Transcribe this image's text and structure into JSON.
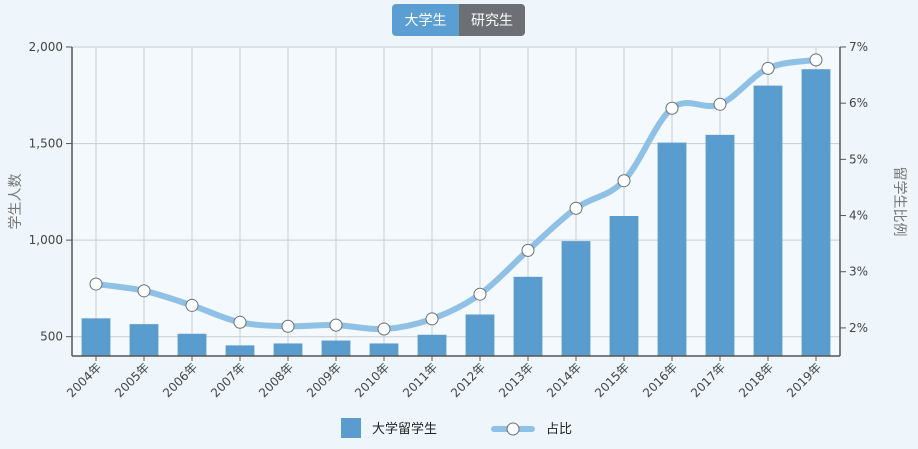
{
  "tabs": [
    {
      "label": "大学生",
      "active": true
    },
    {
      "label": "研究生",
      "active": false
    }
  ],
  "chart_data": {
    "type": "bar+line",
    "categories": [
      "2004年",
      "2005年",
      "2006年",
      "2007年",
      "2008年",
      "2009年",
      "2010年",
      "2011年",
      "2012年",
      "2013年",
      "2014年",
      "2015年",
      "2016年",
      "2017年",
      "2018年",
      "2019年"
    ],
    "series": [
      {
        "name": "大学留学生",
        "type": "bar",
        "axis": "left",
        "values": [
          595,
          565,
          515,
          455,
          465,
          480,
          465,
          510,
          615,
          810,
          995,
          1125,
          1505,
          1545,
          1800,
          1885
        ],
        "color": "#5b9ccf"
      },
      {
        "name": "占比",
        "type": "line",
        "axis": "right",
        "values": [
          2.78,
          2.66,
          2.4,
          2.1,
          2.03,
          2.05,
          1.98,
          2.16,
          2.6,
          3.38,
          4.13,
          4.62,
          5.91,
          5.98,
          6.62,
          6.77
        ],
        "color": "#8fc0e6"
      }
    ],
    "y_left": {
      "label": "学生人数",
      "ticks": [
        "500",
        "1,000",
        "1,500",
        "2,000"
      ],
      "tick_values": [
        500,
        1000,
        1500,
        2000
      ],
      "range": [
        400,
        2000
      ]
    },
    "y_right": {
      "label": "留学生比例",
      "ticks": [
        "2%",
        "3%",
        "4%",
        "5%",
        "6%",
        "7%"
      ],
      "tick_values": [
        2,
        3,
        4,
        5,
        6,
        7
      ],
      "range": [
        1.5,
        7
      ]
    },
    "grid": true,
    "legend_position": "bottom"
  }
}
